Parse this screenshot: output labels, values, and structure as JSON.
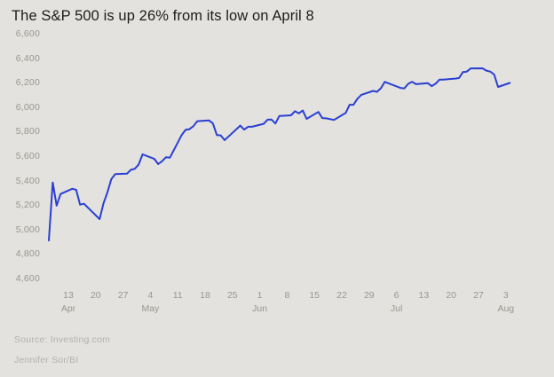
{
  "page": {
    "background": "#e3e2df"
  },
  "chart": {
    "title": "The S&P 500 is up 26% from its low on April 8"
  },
  "footer": {
    "source": "Source: Investing.com",
    "byline": "Jennifer Sor/BI"
  },
  "chart_data": {
    "type": "line",
    "title": "The S&P 500 is up 26% from its low on April 8",
    "xlabel": "",
    "ylabel": "",
    "ylim": [
      4600,
      6600
    ],
    "grid": false,
    "legend": "none",
    "line_color": "#2a3fd2",
    "axis_label_color": "#97968f",
    "y_ticks": [
      {
        "label": "6,600",
        "value": 6600
      },
      {
        "label": "6,400",
        "value": 6400
      },
      {
        "label": "6,200",
        "value": 6200
      },
      {
        "label": "6,000",
        "value": 6000
      },
      {
        "label": "5,800",
        "value": 5800
      },
      {
        "label": "5,600",
        "value": 5600
      },
      {
        "label": "5,400",
        "value": 5400
      },
      {
        "label": "5,200",
        "value": 5200
      },
      {
        "label": "5,000",
        "value": 5000
      },
      {
        "label": "4,800",
        "value": 4800
      },
      {
        "label": "4,600",
        "value": 4600
      }
    ],
    "x_ticks": [
      {
        "label": "13",
        "month": "Apr",
        "day": 5
      },
      {
        "label": "20",
        "month": "",
        "day": 12
      },
      {
        "label": "27",
        "month": "",
        "day": 19
      },
      {
        "label": "4",
        "month": "May",
        "day": 26
      },
      {
        "label": "11",
        "month": "",
        "day": 33
      },
      {
        "label": "18",
        "month": "",
        "day": 40
      },
      {
        "label": "25",
        "month": "",
        "day": 47
      },
      {
        "label": "1",
        "month": "Jun",
        "day": 54
      },
      {
        "label": "8",
        "month": "",
        "day": 61
      },
      {
        "label": "15",
        "month": "",
        "day": 68
      },
      {
        "label": "22",
        "month": "",
        "day": 75
      },
      {
        "label": "29",
        "month": "",
        "day": 82
      },
      {
        "label": "6",
        "month": "Jul",
        "day": 89
      },
      {
        "label": "13",
        "month": "",
        "day": 96
      },
      {
        "label": "20",
        "month": "",
        "day": 103
      },
      {
        "label": "27",
        "month": "",
        "day": 110
      },
      {
        "label": "3",
        "month": "Aug",
        "day": 117
      }
    ],
    "series": [
      {
        "name": "S&P 500",
        "dates": [
          "Apr 8",
          "Apr 9",
          "Apr 10",
          "Apr 11",
          "Apr 14",
          "Apr 15",
          "Apr 16",
          "Apr 17",
          "Apr 21",
          "Apr 22",
          "Apr 23",
          "Apr 24",
          "Apr 25",
          "Apr 28",
          "Apr 29",
          "Apr 30",
          "May 1",
          "May 2",
          "May 5",
          "May 6",
          "May 7",
          "May 8",
          "May 9",
          "May 12",
          "May 13",
          "May 14",
          "May 15",
          "May 16",
          "May 19",
          "May 20",
          "May 21",
          "May 22",
          "May 23",
          "May 27",
          "May 28",
          "May 29",
          "May 30",
          "Jun 2",
          "Jun 3",
          "Jun 4",
          "Jun 5",
          "Jun 6",
          "Jun 9",
          "Jun 10",
          "Jun 11",
          "Jun 12",
          "Jun 13",
          "Jun 16",
          "Jun 17",
          "Jun 18",
          "Jun 20",
          "Jun 23",
          "Jun 24",
          "Jun 25",
          "Jun 26",
          "Jun 27",
          "Jun 30",
          "Jul 1",
          "Jul 2",
          "Jul 3",
          "Jul 7",
          "Jul 8",
          "Jul 9",
          "Jul 10",
          "Jul 11",
          "Jul 14",
          "Jul 15",
          "Jul 16",
          "Jul 17",
          "Jul 18",
          "Jul 21",
          "Jul 22",
          "Jul 23",
          "Jul 24",
          "Jul 25",
          "Jul 28",
          "Jul 29",
          "Jul 30",
          "Jul 31",
          "Aug 1",
          "Aug 4"
        ],
        "days": [
          0,
          1,
          2,
          3,
          6,
          7,
          8,
          9,
          13,
          14,
          15,
          16,
          17,
          20,
          21,
          22,
          23,
          24,
          27,
          28,
          29,
          30,
          31,
          34,
          35,
          36,
          37,
          38,
          41,
          42,
          43,
          44,
          45,
          49,
          50,
          51,
          52,
          55,
          56,
          57,
          58,
          59,
          62,
          63,
          64,
          65,
          66,
          69,
          70,
          71,
          73,
          76,
          77,
          78,
          79,
          80,
          83,
          84,
          85,
          86,
          90,
          91,
          92,
          93,
          94,
          97,
          98,
          99,
          100,
          101,
          104,
          105,
          106,
          107,
          108,
          111,
          112,
          113,
          114,
          115,
          118
        ],
        "values": [
          4983,
          5457,
          5268,
          5363,
          5406,
          5397,
          5276,
          5283,
          5158,
          5288,
          5376,
          5485,
          5525,
          5529,
          5561,
          5569,
          5604,
          5687,
          5650,
          5607,
          5631,
          5664,
          5660,
          5844,
          5887,
          5893,
          5917,
          5958,
          5964,
          5940,
          5845,
          5842,
          5803,
          5922,
          5889,
          5912,
          5912,
          5936,
          5970,
          5971,
          5939,
          6000,
          6006,
          6039,
          6022,
          6045,
          5977,
          6033,
          5983,
          5981,
          5968,
          6025,
          6092,
          6092,
          6141,
          6173,
          6205,
          6198,
          6227,
          6279,
          6230,
          6226,
          6263,
          6280,
          6260,
          6269,
          6244,
          6264,
          6297,
          6297,
          6306,
          6310,
          6359,
          6363,
          6389,
          6390,
          6371,
          6363,
          6339,
          6238,
          6270
        ]
      }
    ]
  }
}
